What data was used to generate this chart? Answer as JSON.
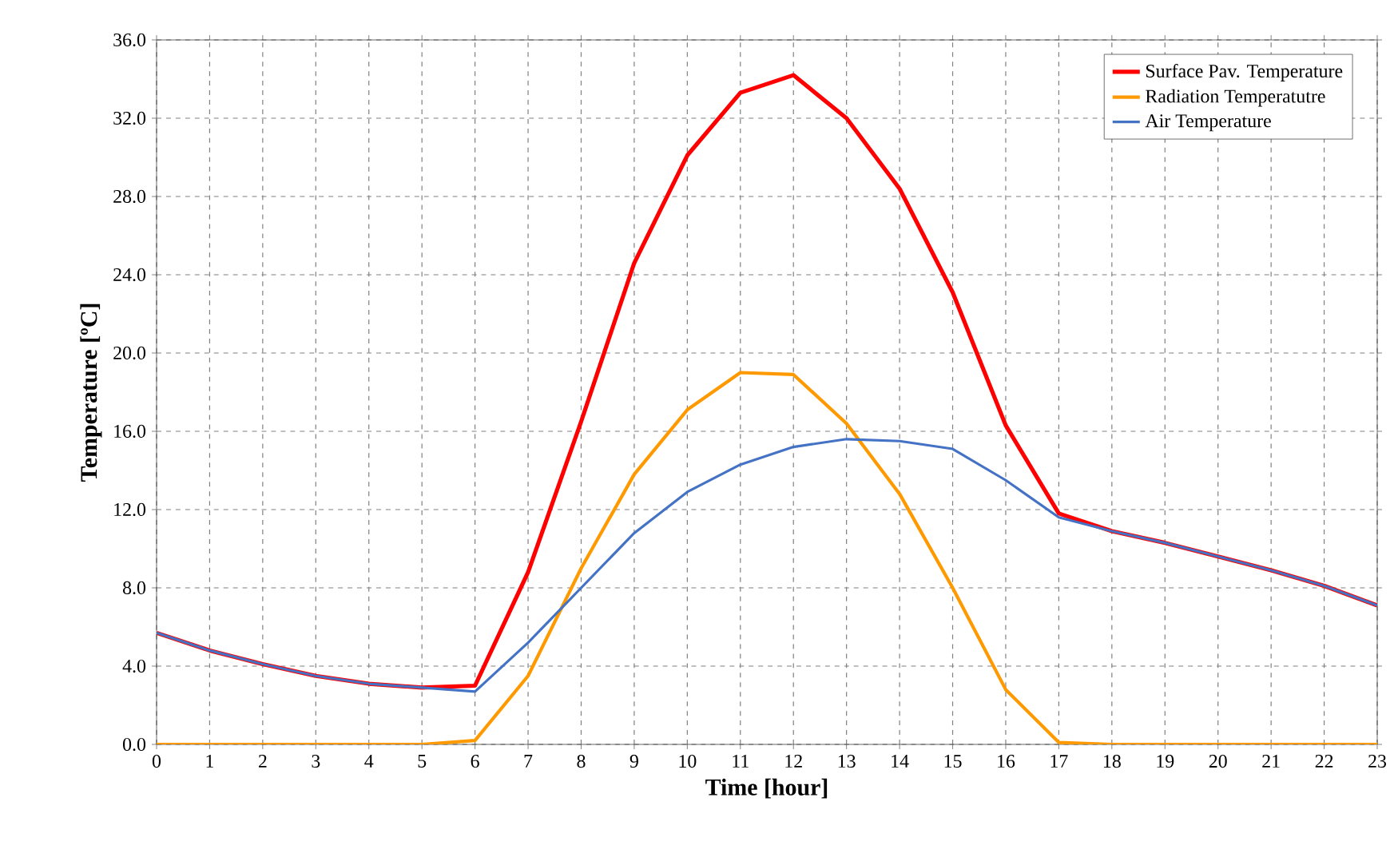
{
  "chart_data": {
    "type": "line",
    "xlabel": "Time [hour]",
    "ylabel": "Temperature [ºC]",
    "x": [
      0,
      1,
      2,
      3,
      4,
      5,
      6,
      7,
      8,
      9,
      10,
      11,
      12,
      13,
      14,
      15,
      16,
      17,
      18,
      19,
      20,
      21,
      22,
      23
    ],
    "xlim": [
      0,
      23
    ],
    "xticks": [
      0,
      1,
      2,
      3,
      4,
      5,
      6,
      7,
      8,
      9,
      10,
      11,
      12,
      13,
      14,
      15,
      16,
      17,
      18,
      19,
      20,
      21,
      22,
      23
    ],
    "ylim": [
      0,
      36
    ],
    "yticks": [
      {
        "value": 0,
        "label": "0.0"
      },
      {
        "value": 4,
        "label": "4.0"
      },
      {
        "value": 8,
        "label": "8.0"
      },
      {
        "value": 12,
        "label": "12.0"
      },
      {
        "value": 16,
        "label": "16.0"
      },
      {
        "value": 20,
        "label": "20.0"
      },
      {
        "value": 24,
        "label": "24.0"
      },
      {
        "value": 28,
        "label": "28.0"
      },
      {
        "value": 32,
        "label": "32.0"
      },
      {
        "value": 36,
        "label": "36.0"
      }
    ],
    "grid": true,
    "legend": "top right",
    "marker": "none",
    "line_style": "solid",
    "series": [
      {
        "name": "Surface Pav. Temperature",
        "color": "#ff0000",
        "values": [
          5.7,
          4.8,
          4.1,
          3.5,
          3.1,
          2.9,
          3.0,
          8.8,
          16.5,
          24.6,
          30.1,
          33.3,
          34.2,
          32.0,
          28.4,
          23.1,
          16.3,
          11.8,
          10.9,
          10.3,
          9.6,
          8.9,
          8.1,
          7.1
        ]
      },
      {
        "name": "Radiation Temperatutre",
        "color": "#ff9900",
        "values": [
          0,
          0,
          0,
          0,
          0,
          0,
          0.2,
          3.5,
          9.0,
          13.8,
          17.1,
          19.0,
          18.9,
          16.4,
          12.8,
          8.0,
          2.8,
          0.1,
          0,
          0,
          0,
          0,
          0,
          0
        ]
      },
      {
        "name": "Air Temperature",
        "color": "#4472c4",
        "values": [
          5.7,
          4.8,
          4.1,
          3.5,
          3.1,
          2.9,
          2.7,
          5.2,
          8.0,
          10.8,
          12.9,
          14.3,
          15.2,
          15.6,
          15.5,
          15.1,
          13.5,
          11.6,
          10.9,
          10.3,
          9.6,
          8.9,
          8.1,
          7.1
        ]
      }
    ]
  }
}
